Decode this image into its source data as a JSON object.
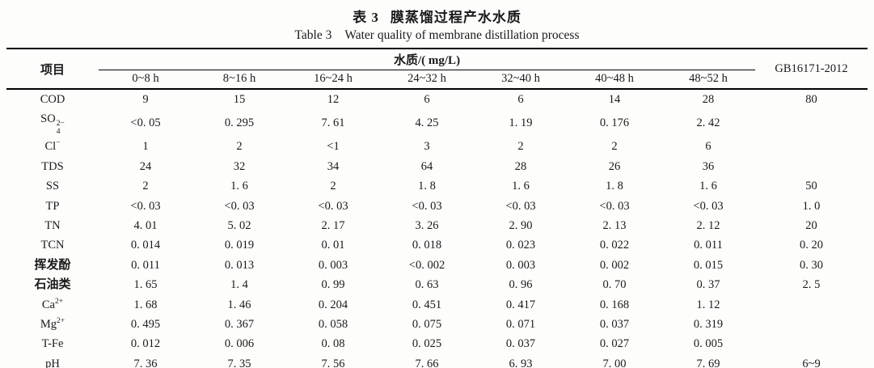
{
  "caption": {
    "cn_label": "表 3",
    "cn_title": "膜蒸馏过程产水水质",
    "en_label": "Table 3",
    "en_title": "Water quality of membrane distillation process"
  },
  "table": {
    "item_header": "项目",
    "group_header": "水质/( mg/L)",
    "gb_header": "GB16171-2012",
    "time_columns": [
      "0~8 h",
      "8~16 h",
      "16~24 h",
      "24~32 h",
      "32~40 h",
      "40~48 h",
      "48~52 h"
    ],
    "rows": [
      {
        "label": "COD",
        "values": [
          "9",
          "15",
          "12",
          "6",
          "6",
          "14",
          "28"
        ],
        "gb": "80"
      },
      {
        "label": "SO42-",
        "parts": {
          "pre": "SO",
          "sub": "4",
          "sup": "2−"
        },
        "values": [
          "<0. 05",
          "0. 295",
          "7. 61",
          "4. 25",
          "1. 19",
          "0. 176",
          "2. 42"
        ],
        "gb": ""
      },
      {
        "label": "Cl-",
        "parts": {
          "pre": "Cl",
          "sup": "−"
        },
        "values": [
          "1",
          "2",
          "<1",
          "3",
          "2",
          "2",
          "6"
        ],
        "gb": ""
      },
      {
        "label": "TDS",
        "values": [
          "24",
          "32",
          "34",
          "64",
          "28",
          "26",
          "36"
        ],
        "gb": ""
      },
      {
        "label": "SS",
        "values": [
          "2",
          "1. 6",
          "2",
          "1. 8",
          "1. 6",
          "1. 8",
          "1. 6"
        ],
        "gb": "50"
      },
      {
        "label": "TP",
        "values": [
          "<0. 03",
          "<0. 03",
          "<0. 03",
          "<0. 03",
          "<0. 03",
          "<0. 03",
          "<0. 03"
        ],
        "gb": "1. 0"
      },
      {
        "label": "TN",
        "values": [
          "4. 01",
          "5. 02",
          "2. 17",
          "3. 26",
          "2. 90",
          "2. 13",
          "2. 12"
        ],
        "gb": "20"
      },
      {
        "label": "TCN",
        "values": [
          "0. 014",
          "0. 019",
          "0. 01",
          "0. 018",
          "0. 023",
          "0. 022",
          "0. 011"
        ],
        "gb": "0. 20"
      },
      {
        "label": "挥发酚",
        "cn": true,
        "values": [
          "0. 011",
          "0. 013",
          "0. 003",
          "<0. 002",
          "0. 003",
          "0. 002",
          "0. 015"
        ],
        "gb": "0. 30"
      },
      {
        "label": "石油类",
        "cn": true,
        "values": [
          "1. 65",
          "1. 4",
          "0. 99",
          "0. 63",
          "0. 96",
          "0. 70",
          "0. 37"
        ],
        "gb": "2. 5"
      },
      {
        "label": "Ca2+",
        "parts": {
          "pre": "Ca",
          "sup": "2+"
        },
        "values": [
          "1. 68",
          "1. 46",
          "0. 204",
          "0. 451",
          "0. 417",
          "0. 168",
          "1. 12"
        ],
        "gb": ""
      },
      {
        "label": "Mg2+",
        "parts": {
          "pre": "Mg",
          "sup": "2+"
        },
        "values": [
          "0. 495",
          "0. 367",
          "0. 058",
          "0. 075",
          "0. 071",
          "0. 037",
          "0. 319"
        ],
        "gb": ""
      },
      {
        "label": "T-Fe",
        "values": [
          "0. 012",
          "0. 006",
          "0. 08",
          "0. 025",
          "0. 037",
          "0. 027",
          "0. 005"
        ],
        "gb": ""
      },
      {
        "label": "pH",
        "values": [
          "7. 36",
          "7. 35",
          "7. 56",
          "7. 66",
          "6. 93",
          "7. 00",
          "7. 69"
        ],
        "gb": "6~9"
      }
    ]
  }
}
